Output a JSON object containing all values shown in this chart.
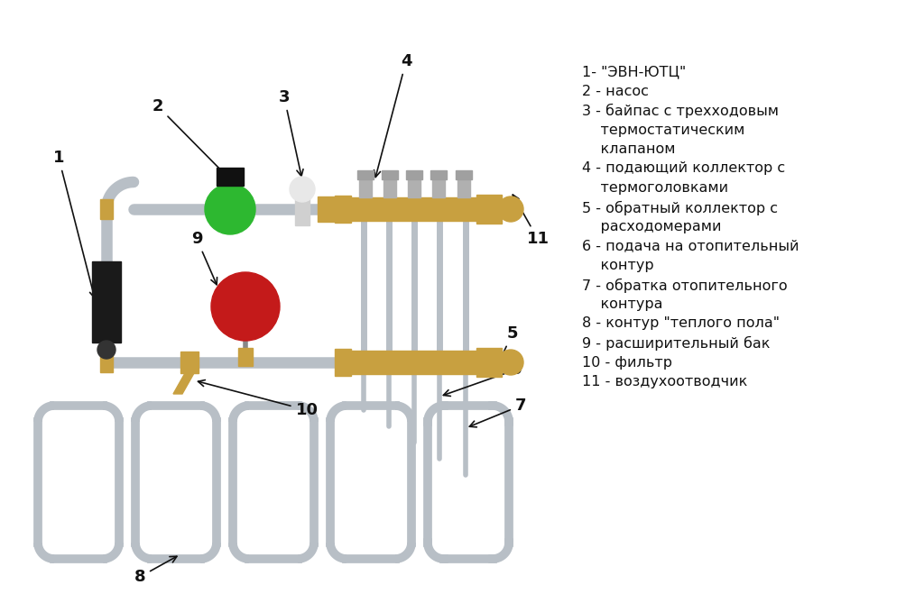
{
  "background_color": "#ffffff",
  "legend_lines": [
    "1- \"ЭВН-ЮТЦ\"",
    "2 - насос",
    "3 - байпас с трехходовым",
    "    термостатическим",
    "    клапаном",
    "4 - подающий коллектор с",
    "    термоголовками",
    "5 - обратный коллектор с",
    "    расходомерами",
    "6 - подача на отопительный",
    "    контур",
    "7 - обратка отопительного",
    "    контура",
    "8 - контур \"теплого пола\"",
    "9 - расширительный бак",
    "10 - фильтр",
    "11 - воздухоотводчик"
  ],
  "pipe_color": "#b8bfc6",
  "pipe_edge": "#8a9298",
  "brass_color": "#c8a040",
  "green_ball": "#2db830",
  "red_ball": "#c41a1a",
  "black_color": "#111111",
  "text_color": "#111111"
}
